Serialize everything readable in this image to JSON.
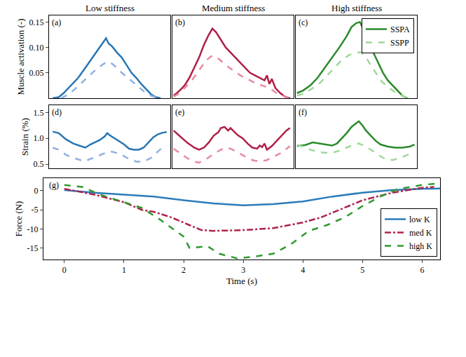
{
  "chart_data": [
    {
      "type": "line",
      "title": "Low stiffness",
      "panel_label": "(a)",
      "y_label": "Muscle activation (-)",
      "xlim": [
        0,
        100
      ],
      "ylim": [
        0,
        0.163
      ],
      "yticks": [
        0.05,
        {
          "value": 0.1,
          "label": "0.10"
        },
        0.15
      ],
      "tick_labels": "y",
      "grid": false,
      "series": [
        {
          "name": "SSPA",
          "color": "#2876b4",
          "line_style": "solid",
          "x": [
            3,
            8,
            12,
            18,
            24,
            30,
            36,
            40,
            44,
            47,
            49,
            52,
            56,
            60,
            64,
            68,
            72,
            76,
            80,
            84,
            88,
            92
          ],
          "values": [
            0,
            0.002,
            0.01,
            0.025,
            0.04,
            0.06,
            0.08,
            0.095,
            0.108,
            0.118,
            0.108,
            0.102,
            0.09,
            0.08,
            0.065,
            0.05,
            0.04,
            0.028,
            0.018,
            0.008,
            0.002,
            0
          ]
        },
        {
          "name": "SSPP",
          "color": "#8fb1e0",
          "line_style": "dash",
          "x": [
            10,
            14,
            20,
            26,
            32,
            38,
            44,
            48,
            52,
            56,
            60,
            66,
            72,
            78,
            84,
            90
          ],
          "values": [
            0,
            0.005,
            0.015,
            0.028,
            0.042,
            0.055,
            0.066,
            0.072,
            0.068,
            0.06,
            0.05,
            0.038,
            0.025,
            0.014,
            0.005,
            0
          ]
        }
      ]
    },
    {
      "type": "line",
      "title": "Medium stiffness",
      "panel_label": "(b)",
      "xlim": [
        0,
        100
      ],
      "ylim": [
        0,
        0.163
      ],
      "tick_labels": false,
      "grid": false,
      "series": [
        {
          "name": "SSPA",
          "color": "#b01f45",
          "line_style": "solid",
          "x": [
            1,
            6,
            10,
            14,
            18,
            22,
            26,
            30,
            33,
            36,
            40,
            44,
            48,
            52,
            56,
            60,
            64,
            68,
            72,
            76,
            78,
            80,
            82,
            85,
            89,
            93,
            97
          ],
          "values": [
            0.005,
            0.015,
            0.025,
            0.04,
            0.06,
            0.08,
            0.105,
            0.125,
            0.137,
            0.13,
            0.115,
            0.1,
            0.09,
            0.08,
            0.07,
            0.06,
            0.05,
            0.045,
            0.04,
            0.035,
            0.045,
            0.028,
            0.038,
            0.02,
            0.01,
            0.003,
            0
          ]
        },
        {
          "name": "SSPP",
          "color": "#e8899f",
          "line_style": "dash",
          "x": [
            1,
            6,
            10,
            16,
            22,
            28,
            33,
            38,
            44,
            50,
            56,
            62,
            68,
            74,
            80,
            86,
            92,
            97
          ],
          "values": [
            0.003,
            0.01,
            0.02,
            0.035,
            0.055,
            0.075,
            0.084,
            0.078,
            0.065,
            0.055,
            0.045,
            0.038,
            0.03,
            0.025,
            0.02,
            0.01,
            0.004,
            0
          ]
        }
      ]
    },
    {
      "type": "line",
      "title": "High stiffness",
      "panel_label": "(c)",
      "legend": "top right",
      "xlim": [
        0,
        100
      ],
      "ylim": [
        0,
        0.163
      ],
      "tick_labels": false,
      "grid": false,
      "series": [
        {
          "name": "SSPA",
          "color": "#2a8a2a",
          "line_style": "solid",
          "x": [
            1,
            6,
            12,
            18,
            24,
            30,
            36,
            42,
            46,
            50,
            53,
            56,
            60,
            64,
            68,
            72,
            76,
            80,
            84,
            88,
            92
          ],
          "values": [
            0.01,
            0.015,
            0.025,
            0.04,
            0.06,
            0.08,
            0.1,
            0.122,
            0.14,
            0.148,
            0.15,
            0.135,
            0.115,
            0.09,
            0.07,
            0.05,
            0.035,
            0.025,
            0.015,
            0.005,
            0
          ]
        },
        {
          "name": "SSPP",
          "color": "#9fd89a",
          "line_style": "dash",
          "x": [
            1,
            8,
            14,
            20,
            26,
            32,
            38,
            44,
            50,
            54,
            58,
            62,
            66,
            70,
            76,
            82,
            88,
            92
          ],
          "values": [
            0.005,
            0.01,
            0.02,
            0.03,
            0.045,
            0.06,
            0.075,
            0.085,
            0.09,
            0.09,
            0.08,
            0.065,
            0.05,
            0.035,
            0.022,
            0.012,
            0.005,
            0
          ]
        }
      ]
    },
    {
      "type": "line",
      "panel_label": "(d)",
      "y_label": "Strain (%)",
      "xlim": [
        0,
        100
      ],
      "ylim": [
        0.42,
        1.64
      ],
      "yticks": [
        0.5,
        {
          "value": 1,
          "label": "1.0"
        },
        1.5
      ],
      "tick_labels": "y",
      "grid": false,
      "series": [
        {
          "name": "SSPA",
          "color": "#2876b4",
          "line_style": "solid",
          "x": [
            3,
            8,
            14,
            20,
            26,
            30,
            34,
            38,
            42,
            46,
            48,
            50,
            54,
            58,
            62,
            66,
            70,
            74,
            78,
            82,
            86,
            90,
            94,
            97
          ],
          "values": [
            1.13,
            1.1,
            0.98,
            0.9,
            0.85,
            0.82,
            0.88,
            0.92,
            0.97,
            1.04,
            1.1,
            1.06,
            1.0,
            0.95,
            0.88,
            0.8,
            0.78,
            0.78,
            0.82,
            0.92,
            1.02,
            1.08,
            1.11,
            1.12
          ]
        },
        {
          "name": "SSPP",
          "color": "#8fb1e0",
          "line_style": "dash",
          "x": [
            3,
            8,
            14,
            20,
            26,
            30,
            34,
            40,
            46,
            50,
            54,
            60,
            66,
            72,
            78,
            84,
            90,
            94,
            97
          ],
          "values": [
            0.82,
            0.78,
            0.68,
            0.62,
            0.58,
            0.56,
            0.6,
            0.66,
            0.72,
            0.75,
            0.73,
            0.68,
            0.6,
            0.55,
            0.55,
            0.62,
            0.75,
            0.83,
            0.86
          ]
        }
      ]
    },
    {
      "type": "line",
      "panel_label": "(e)",
      "xlim": [
        0,
        100
      ],
      "ylim": [
        0.42,
        1.64
      ],
      "tick_labels": false,
      "grid": false,
      "series": [
        {
          "name": "SSPA",
          "color": "#b01f45",
          "line_style": "solid",
          "x": [
            1,
            6,
            12,
            18,
            22,
            26,
            30,
            34,
            38,
            40,
            43,
            46,
            48,
            50,
            54,
            58,
            62,
            66,
            70,
            72,
            74,
            76,
            78,
            82,
            86,
            90,
            94,
            97
          ],
          "values": [
            1.15,
            1.05,
            0.92,
            0.82,
            0.78,
            0.82,
            0.92,
            1.05,
            1.12,
            1.2,
            1.22,
            1.15,
            1.2,
            1.15,
            1.06,
            1.0,
            0.9,
            0.82,
            0.8,
            0.86,
            0.83,
            0.9,
            0.78,
            0.85,
            0.95,
            1.05,
            1.15,
            1.2
          ]
        },
        {
          "name": "SSPP",
          "color": "#e8899f",
          "line_style": "dash",
          "x": [
            1,
            6,
            12,
            18,
            22,
            28,
            34,
            40,
            44,
            48,
            54,
            60,
            66,
            72,
            78,
            84,
            90,
            97
          ],
          "values": [
            0.8,
            0.72,
            0.62,
            0.55,
            0.53,
            0.6,
            0.7,
            0.78,
            0.82,
            0.8,
            0.72,
            0.65,
            0.58,
            0.55,
            0.58,
            0.65,
            0.72,
            0.85
          ]
        }
      ]
    },
    {
      "type": "line",
      "panel_label": "(f)",
      "xlim": [
        0,
        100
      ],
      "ylim": [
        0.42,
        1.64
      ],
      "tick_labels": false,
      "grid": false,
      "series": [
        {
          "name": "SSPA",
          "color": "#2a8a2a",
          "line_style": "solid",
          "x": [
            1,
            8,
            14,
            20,
            26,
            30,
            34,
            38,
            42,
            46,
            50,
            52,
            55,
            58,
            62,
            66,
            70,
            76,
            82,
            88,
            94,
            98
          ],
          "values": [
            0.85,
            0.87,
            0.92,
            0.9,
            0.88,
            0.86,
            0.9,
            1.0,
            1.1,
            1.22,
            1.3,
            1.33,
            1.25,
            1.15,
            1.05,
            0.95,
            0.88,
            0.84,
            0.82,
            0.82,
            0.84,
            0.88
          ]
        },
        {
          "name": "SSPP",
          "color": "#9fd89a",
          "line_style": "dash",
          "x": [
            1,
            6,
            12,
            18,
            24,
            30,
            36,
            42,
            48,
            52,
            56,
            62,
            68,
            74,
            80,
            86,
            92,
            98
          ],
          "values": [
            0.87,
            0.84,
            0.78,
            0.74,
            0.72,
            0.72,
            0.76,
            0.82,
            0.88,
            0.9,
            0.86,
            0.78,
            0.68,
            0.6,
            0.58,
            0.62,
            0.68,
            0.72
          ]
        }
      ]
    },
    {
      "type": "line",
      "panel_label": "(g)",
      "x_label": "Time (s)",
      "y_label": "Force (N)",
      "legend": "bottom right",
      "xlim": [
        -0.35,
        6.3
      ],
      "ylim": [
        -18,
        3.3
      ],
      "xticks": [
        0,
        1,
        2,
        3,
        4,
        5,
        6
      ],
      "yticks": [
        -15,
        -10,
        -5,
        0
      ],
      "grid": false,
      "series": [
        {
          "name": "low K",
          "color": "#2b7bba",
          "line_style": "solid",
          "x": [
            0,
            0.5,
            1,
            1.5,
            2,
            2.5,
            3,
            3.5,
            4,
            4.5,
            5,
            5.5,
            6,
            6.3
          ],
          "values": [
            0.2,
            -0.5,
            -1,
            -1.5,
            -2.5,
            -3.3,
            -3.8,
            -3.5,
            -2.8,
            -1.5,
            -0.5,
            0.2,
            0.5,
            0.6
          ]
        },
        {
          "name": "med K",
          "color": "#b0234a",
          "line_style": "dashdot",
          "x": [
            0,
            0.5,
            1,
            1.3,
            1.5,
            1.8,
            2.1,
            2.3,
            2.5,
            3,
            3.5,
            4,
            4.3,
            4.7,
            5,
            5.5,
            6,
            6.2
          ],
          "values": [
            0.5,
            -1,
            -3,
            -5,
            -5.5,
            -7,
            -9,
            -10.3,
            -10.5,
            -10.3,
            -9.8,
            -8.3,
            -7,
            -4.5,
            -2.5,
            -0.5,
            0.8,
            1
          ]
        },
        {
          "name": "high K",
          "color": "#2e9a2e",
          "line_style": "dash",
          "x": [
            0,
            0.3,
            0.6,
            1,
            1.3,
            1.6,
            2,
            2.1,
            2.4,
            2.6,
            2.9,
            3.2,
            3.5,
            3.8,
            4.1,
            4.4,
            4.7,
            5,
            5.3,
            5.6,
            6,
            6.3
          ],
          "values": [
            1.5,
            1,
            -1,
            -3,
            -4.5,
            -7.5,
            -12,
            -15,
            -14.5,
            -16.5,
            -17.7,
            -17.2,
            -16.5,
            -14,
            -10.5,
            -9,
            -7,
            -4,
            -1.5,
            0.5,
            1.5,
            2
          ]
        }
      ]
    }
  ]
}
